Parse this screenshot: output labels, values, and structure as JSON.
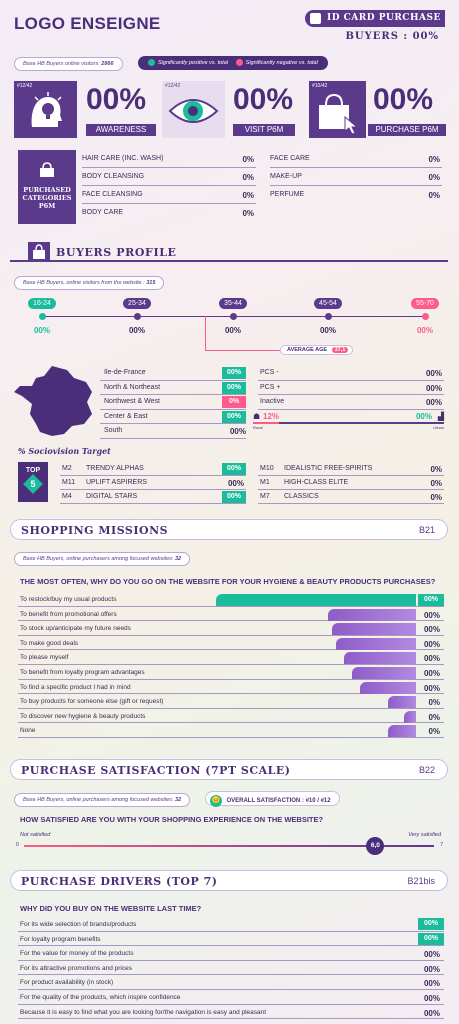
{
  "header": {
    "logo": "LOGO ENSEIGNE",
    "card_title": "ID CARD PURCHASE",
    "buyers_label": "BUYERS : 00%",
    "visitors_note_prefix": "Base HB Buyers online visitors: ",
    "visitors_note_value": "2866",
    "legend_positive": "Significantly positive vs. total",
    "legend_negative": "Significantly negative vs. total",
    "colors": {
      "positive": "#1abc9c",
      "negative": "#ff5a8a",
      "brand": "#5b3a8c"
    }
  },
  "kpis": [
    {
      "rank": "#12/42",
      "value": "00%",
      "label": "AWARENESS",
      "icon": "lightbulb-head-icon"
    },
    {
      "rank": "#12/42",
      "value": "00%",
      "label": "VISIT P6M",
      "icon": "eye-icon"
    },
    {
      "rank": "#10/42",
      "value": "00%",
      "label": "PURCHASE P6M",
      "icon": "shopping-bag-cursor-icon"
    }
  ],
  "purchased_categories": {
    "title_lines": [
      "PURCHASED",
      "CATEGORIES",
      "P6M"
    ],
    "left": [
      {
        "label": "HAIR CARE (INC. WASH)",
        "value": "0%"
      },
      {
        "label": "BODY CLEANSING",
        "value": "0%"
      },
      {
        "label": "FACE CLEANSING",
        "value": "0%"
      },
      {
        "label": "BODY CARE",
        "value": "0%"
      }
    ],
    "right": [
      {
        "label": "FACE CARE",
        "value": "0%"
      },
      {
        "label": "MAKE-UP",
        "value": "0%"
      },
      {
        "label": "PERFUME",
        "value": "0%"
      }
    ]
  },
  "buyers_profile": {
    "title": "BUYERS PROFILE",
    "note_prefix": "Base HB Buyers, online visitors from the website : ",
    "note_value": "315",
    "ages": [
      {
        "label": "16-24",
        "value": "00%",
        "status": "positive"
      },
      {
        "label": "25-34",
        "value": "00%",
        "status": "neutral"
      },
      {
        "label": "35-44",
        "value": "00%",
        "status": "neutral"
      },
      {
        "label": "45-54",
        "value": "00%",
        "status": "neutral"
      },
      {
        "label": "55-70",
        "value": "00%",
        "status": "negative"
      }
    ],
    "average_age_label": "AVERAGE AGE",
    "average_age_value": "37,1",
    "regions": [
      {
        "label": "Ile-de-France",
        "value": "00%",
        "status": "positive"
      },
      {
        "label": "North & Northeast",
        "value": "00%",
        "status": "positive"
      },
      {
        "label": "Northwest & West",
        "value": "0%",
        "status": "negative"
      },
      {
        "label": "Center & East",
        "value": "00%",
        "status": "positive"
      },
      {
        "label": "South",
        "value": "00%",
        "status": "neutral"
      }
    ],
    "pcs": [
      {
        "label": "PCS -",
        "value": "00%"
      },
      {
        "label": "PCS +",
        "value": "00%"
      },
      {
        "label": "Inactive",
        "value": "00%"
      }
    ],
    "rural_value": "12%",
    "urban_value": "00%",
    "rural_label": "Rural",
    "urban_label": "Urban",
    "sociovision_title": "% Sociovision Target",
    "top_label": "TOP",
    "top_number": "5",
    "socio_left": [
      {
        "code": "M2",
        "label": "TRENDY ALPHAS",
        "value": "00%",
        "status": "positive"
      },
      {
        "code": "M11",
        "label": "UPLIFT ASPIRERS",
        "value": "00%",
        "status": "neutral"
      },
      {
        "code": "M4",
        "label": "DIGITAL STARS",
        "value": "00%",
        "status": "positive"
      }
    ],
    "socio_right": [
      {
        "code": "M10",
        "label": "IDEALISTIC FREE-SPIRITS",
        "value": "0%"
      },
      {
        "code": "M1",
        "label": "HIGH-CLASS ELITE",
        "value": "0%"
      },
      {
        "code": "M7",
        "label": "CLASSICS",
        "value": "0%"
      }
    ]
  },
  "shopping_missions": {
    "title": "SHOPPING MISSIONS",
    "code": "B21",
    "note_prefix": "Base HB Buyers, online purchasers among focused websites: ",
    "note_value": "32",
    "question": "THE MOST OFTEN, WHY DO YOU GO ON THE WEBSITE FOR YOUR HYGIENE & BEAUTY PRODUCTS PURCHASES?",
    "items": [
      {
        "label": "To restock/buy my usual products",
        "value": "00%",
        "share": 0.5,
        "status": "positive"
      },
      {
        "label": "To benefit from promotional offers",
        "value": "00%",
        "share": 0.22,
        "status": "neutral"
      },
      {
        "label": "To stock up/anticipate my future needs",
        "value": "00%",
        "share": 0.21,
        "status": "neutral"
      },
      {
        "label": "To make good deals",
        "value": "00%",
        "share": 0.2,
        "status": "neutral"
      },
      {
        "label": "To please myself",
        "value": "00%",
        "share": 0.18,
        "status": "neutral"
      },
      {
        "label": "To benefit from loyalty program advantages",
        "value": "00%",
        "share": 0.16,
        "status": "neutral"
      },
      {
        "label": "To find a specific product I had in mind",
        "value": "00%",
        "share": 0.14,
        "status": "neutral"
      },
      {
        "label": "To buy products for someone else (gift or request)",
        "value": "0%",
        "share": 0.07,
        "status": "neutral"
      },
      {
        "label": "To discover new hygiene & beauty products",
        "value": "0%",
        "share": 0.03,
        "status": "neutral"
      },
      {
        "label": "None",
        "value": "0%",
        "share": 0.07,
        "status": "neutral"
      }
    ]
  },
  "satisfaction": {
    "title": "PURCHASE SATISFACTION (7PT SCALE)",
    "code": "B22",
    "note_prefix": "Base HB Buyers, online purchasers among focused websites: ",
    "note_value": "32",
    "overall_label": "OVERALL SATISFACTION : #10 / #12",
    "question": "HOW SATISFIED ARE YOU WITH YOUR SHOPPING EXPERIENCE ON THE WEBSITE?",
    "left_label": "Not satisfied",
    "right_label": "Very satisfied",
    "min": "0",
    "max": "7",
    "score": 6.0,
    "score_label": "6,0"
  },
  "drivers": {
    "title": "PURCHASE DRIVERS (TOP 7)",
    "code": "B21bis",
    "question": "WHY DID YOU BUY ON THE WEBSITE LAST TIME?",
    "items": [
      {
        "label": "For its wide selection of brands/products",
        "value": "00%",
        "status": "positive"
      },
      {
        "label": "For loyalty program benefits",
        "value": "00%",
        "status": "positive"
      },
      {
        "label": "For the value for money of the products",
        "value": "00%",
        "status": "neutral"
      },
      {
        "label": "For its attractive promotions and prices",
        "value": "00%",
        "status": "neutral"
      },
      {
        "label": "For product availability (in stock)",
        "value": "00%",
        "status": "neutral"
      },
      {
        "label": "For the quality of the products, which inspire confidence",
        "value": "00%",
        "status": "neutral"
      },
      {
        "label": "Because it is easy to find what you are looking for/the navigation is easy and pleasant",
        "value": "00%",
        "status": "neutral"
      }
    ]
  }
}
